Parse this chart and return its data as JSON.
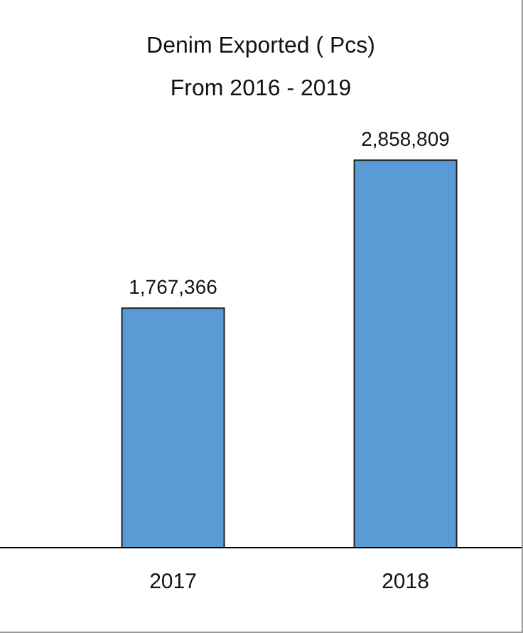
{
  "chart_data": {
    "type": "bar",
    "title": "Denim Exported ( Pcs)",
    "subtitle": "From 2016 - 2019",
    "categories": [
      "2017",
      "2018"
    ],
    "values": [
      1767366,
      2858809
    ],
    "value_labels": [
      "1,767,366",
      "2,858,809"
    ],
    "color": "#5b9bd5",
    "tick_labels": "x"
  }
}
